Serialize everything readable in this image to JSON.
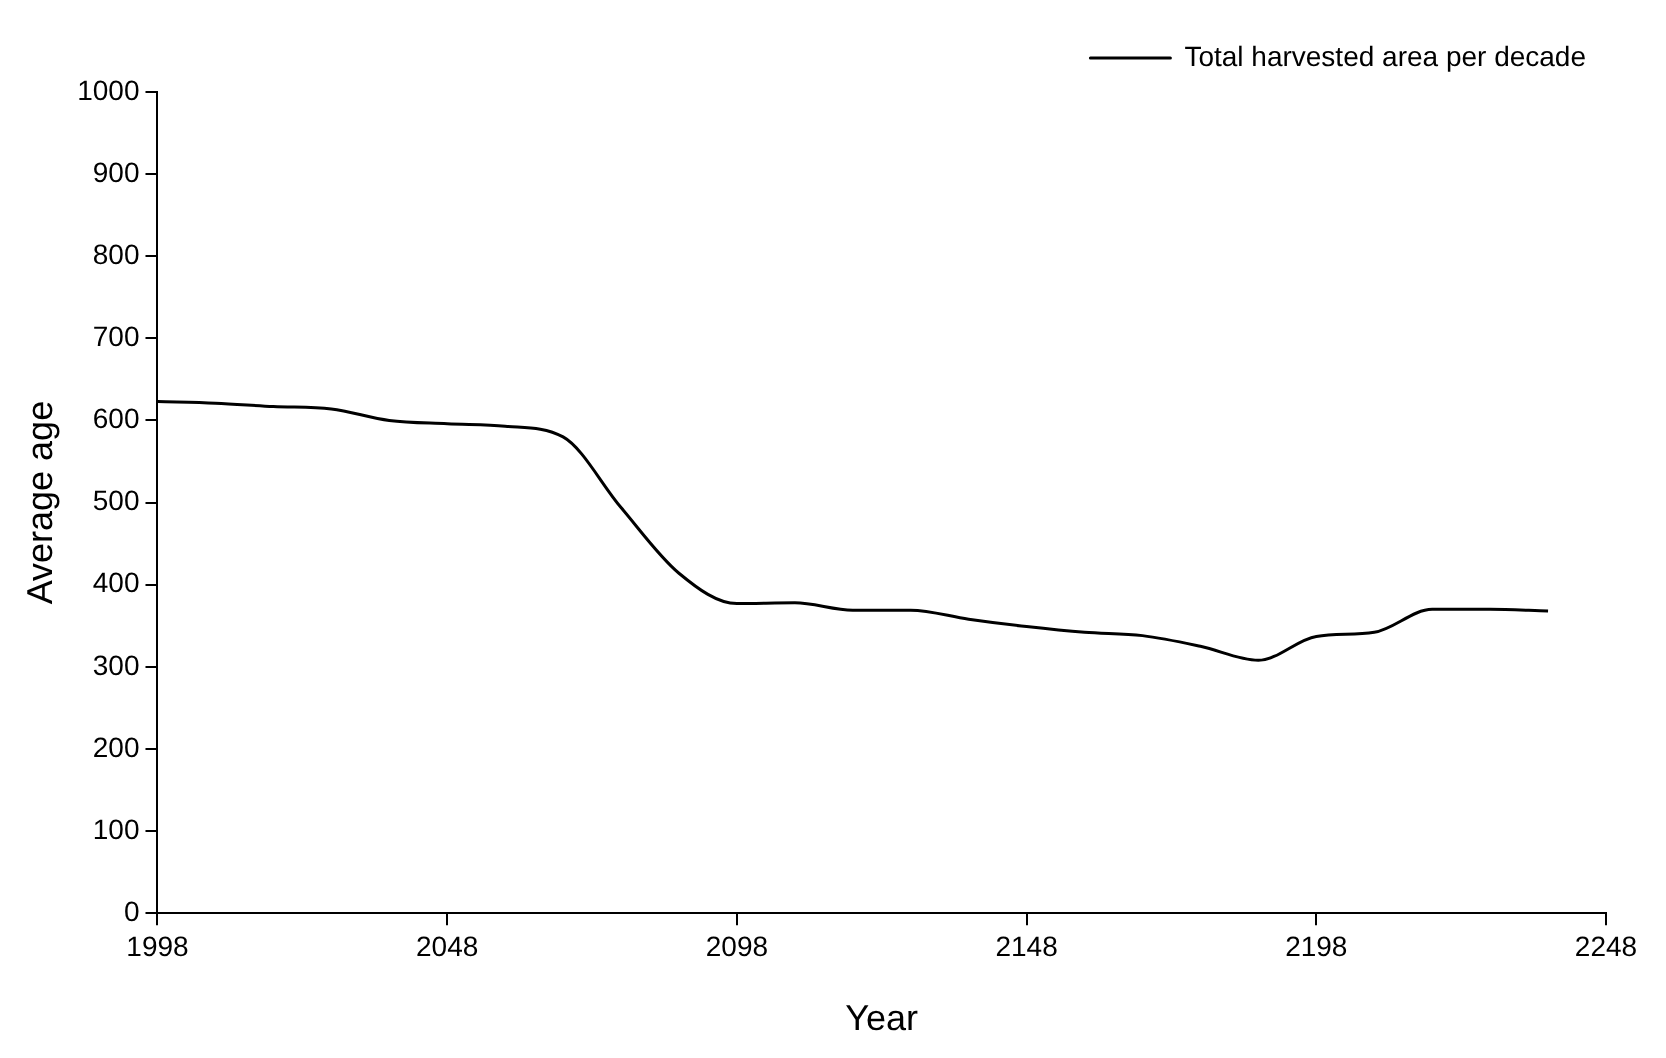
{
  "chart_data": {
    "type": "line",
    "xlabel": "Year",
    "ylabel": "Average age",
    "x": [
      1998,
      2008,
      2018,
      2028,
      2038,
      2048,
      2058,
      2068,
      2078,
      2088,
      2098,
      2108,
      2118,
      2128,
      2138,
      2148,
      2158,
      2168,
      2178,
      2188,
      2198,
      2208,
      2218,
      2228,
      2238
    ],
    "series": [
      {
        "name": "Total harvested area per decade",
        "color": "#000000",
        "values": [
          623,
          621,
          617,
          614,
          600,
          596,
          593,
          580,
          494,
          414,
          377,
          378,
          369,
          369,
          358,
          349,
          342,
          338,
          325,
          308,
          337,
          342,
          370,
          370,
          368
        ]
      }
    ],
    "xlim": [
      1998,
      2248
    ],
    "xticks": [
      1998,
      2048,
      2098,
      2148,
      2198,
      2248
    ],
    "ylim": [
      0,
      1000
    ],
    "yticks": [
      0,
      100,
      200,
      300,
      400,
      500,
      600,
      700,
      800,
      900,
      1000
    ],
    "grid": false,
    "legend": "top right",
    "marker": "none",
    "line_style": "solid"
  }
}
